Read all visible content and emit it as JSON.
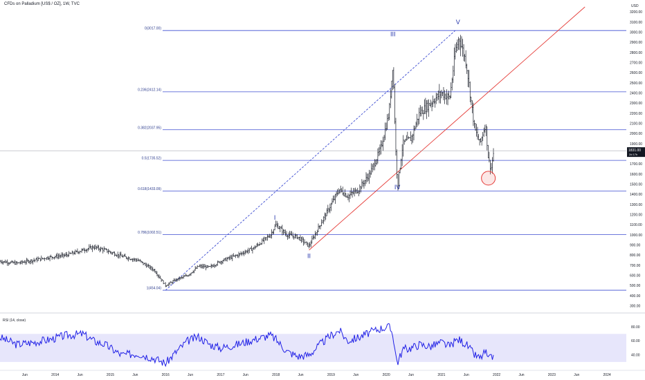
{
  "header": {
    "title": "CFDs on Palladium [US$ / OZ], 1W, TVC"
  },
  "axis": {
    "currency": "USD",
    "price_ticks": [
      300,
      400,
      500,
      600,
      700,
      800,
      900,
      1000,
      1100,
      1200,
      1300,
      1400,
      1500,
      1600,
      1700,
      1800,
      1900,
      2000,
      2100,
      2200,
      2300,
      2400,
      2500,
      2600,
      2700,
      2800,
      2900,
      3000,
      3100,
      3200
    ],
    "price_tick_labels": [
      "300.00",
      "400.00",
      "500.00",
      "600.00",
      "700.00",
      "800.00",
      "900.00",
      "1000.00",
      "1100.00",
      "1200.00",
      "1300.00",
      "1400.00",
      "1500.00",
      "1600.00",
      "1700.00",
      "1800.00",
      "1900.00",
      "2000.00",
      "2100.00",
      "2200.00",
      "2300.00",
      "2400.00",
      "2500.00",
      "2600.00",
      "2700.00",
      "2800.00",
      "2900.00",
      "3000.00",
      "3100.00",
      "3200.00"
    ],
    "time_labels": [
      {
        "t": 2013.45,
        "label": "Jun"
      },
      {
        "t": 2014.0,
        "label": "2014"
      },
      {
        "t": 2014.45,
        "label": "Jun"
      },
      {
        "t": 2015.0,
        "label": "2015"
      },
      {
        "t": 2015.45,
        "label": "Jun"
      },
      {
        "t": 2016.0,
        "label": "2016"
      },
      {
        "t": 2016.45,
        "label": "Jun"
      },
      {
        "t": 2017.0,
        "label": "2017"
      },
      {
        "t": 2017.45,
        "label": "Jun"
      },
      {
        "t": 2018.0,
        "label": "2018"
      },
      {
        "t": 2018.45,
        "label": "Jun"
      },
      {
        "t": 2019.0,
        "label": "2019"
      },
      {
        "t": 2019.45,
        "label": "Jun"
      },
      {
        "t": 2020.0,
        "label": "2020"
      },
      {
        "t": 2020.45,
        "label": "Jun"
      },
      {
        "t": 2021.0,
        "label": "2021"
      },
      {
        "t": 2021.45,
        "label": "Jun"
      },
      {
        "t": 2022.0,
        "label": "2022"
      },
      {
        "t": 2022.45,
        "label": "Jun"
      },
      {
        "t": 2023.0,
        "label": "2023"
      },
      {
        "t": 2023.45,
        "label": "Jun"
      },
      {
        "t": 2024.0,
        "label": "2024"
      }
    ]
  },
  "last_price": {
    "value": 1831.0,
    "label": "1831.00",
    "countdown": "2d 17h"
  },
  "fib_levels": [
    {
      "ratio_label": "0(3017.00)",
      "price": 3017.0
    },
    {
      "ratio_label": "0.236(2412.14)",
      "price": 2412.14
    },
    {
      "ratio_label": "0.382(2037.95)",
      "price": 2037.95
    },
    {
      "ratio_label": "0.5(1735.52)",
      "price": 1735.52
    },
    {
      "ratio_label": "0.618(1433.09)",
      "price": 1433.09
    },
    {
      "ratio_label": "0.786(1002.51)",
      "price": 1002.51
    },
    {
      "ratio_label": "1(454.04)",
      "price": 454.04
    }
  ],
  "wave_labels": [
    {
      "label": "I",
      "t": 2017.98,
      "price": 1150
    },
    {
      "label": "II",
      "t": 2018.6,
      "price": 770
    },
    {
      "label": "III",
      "t": 2020.12,
      "price": 2960
    },
    {
      "label": "IV",
      "t": 2020.2,
      "price": 1450
    },
    {
      "label": "V",
      "t": 2021.3,
      "price": 3080
    }
  ],
  "rsi": {
    "label": "RSI (14, close)",
    "ticks": [
      40,
      60,
      80
    ],
    "tick_labels": [
      "40.00",
      "60.00",
      "80.00"
    ],
    "band": [
      30,
      70
    ]
  },
  "chart_data": {
    "type": "line",
    "title": "CFDs on Palladium [US$ / OZ], 1W, TVC",
    "price_series": {
      "name": "",
      "x": [
        2013.0,
        2013.3,
        2013.6,
        2013.9,
        2014.2,
        2014.5,
        2014.7,
        2014.9,
        2015.2,
        2015.5,
        2015.8,
        2016.0,
        2016.2,
        2016.4,
        2016.6,
        2016.8,
        2017.0,
        2017.3,
        2017.6,
        2017.9,
        2018.0,
        2018.2,
        2018.4,
        2018.6,
        2018.8,
        2019.0,
        2019.15,
        2019.3,
        2019.5,
        2019.7,
        2019.9,
        2020.05,
        2020.12,
        2020.18,
        2020.21,
        2020.3,
        2020.45,
        2020.6,
        2020.8,
        2021.0,
        2021.15,
        2021.25,
        2021.32,
        2021.45,
        2021.6,
        2021.7,
        2021.8,
        2021.85,
        2021.9,
        2021.95
      ],
      "close": [
        740,
        720,
        750,
        780,
        800,
        850,
        880,
        850,
        790,
        750,
        650,
        500,
        560,
        600,
        690,
        680,
        740,
        800,
        870,
        1000,
        1100,
        1000,
        980,
        890,
        1100,
        1300,
        1450,
        1380,
        1450,
        1600,
        1850,
        2200,
        2700,
        1700,
        1500,
        1900,
        1950,
        2200,
        2300,
        2400,
        2350,
        2800,
        2950,
        2700,
        2050,
        1900,
        2100,
        1750,
        1650,
        1831
      ]
    },
    "rsi_series": {
      "name": "",
      "x": [
        2013.0,
        2013.3,
        2013.6,
        2013.9,
        2014.2,
        2014.5,
        2014.7,
        2014.9,
        2015.2,
        2015.5,
        2015.8,
        2016.0,
        2016.2,
        2016.4,
        2016.6,
        2016.8,
        2017.0,
        2017.3,
        2017.6,
        2017.9,
        2018.0,
        2018.2,
        2018.4,
        2018.6,
        2018.8,
        2019.0,
        2019.15,
        2019.3,
        2019.5,
        2019.7,
        2019.9,
        2020.05,
        2020.12,
        2020.18,
        2020.21,
        2020.3,
        2020.45,
        2020.6,
        2020.8,
        2021.0,
        2021.15,
        2021.25,
        2021.32,
        2021.45,
        2021.6,
        2021.7,
        2021.8,
        2021.85,
        2021.9,
        2021.95
      ],
      "values": [
        65,
        55,
        58,
        62,
        68,
        70,
        60,
        55,
        40,
        42,
        35,
        28,
        45,
        60,
        66,
        55,
        50,
        55,
        62,
        68,
        62,
        45,
        38,
        40,
        55,
        68,
        75,
        60,
        65,
        72,
        78,
        80,
        70,
        35,
        30,
        48,
        50,
        55,
        52,
        58,
        52,
        60,
        62,
        55,
        40,
        35,
        45,
        33,
        36,
        38
      ]
    },
    "trend_lines": [
      {
        "style": "dashed",
        "color": "#3b4bd1",
        "from": {
          "t": 2016.0,
          "price": 454
        },
        "to": {
          "t": 2021.25,
          "price": 3017
        }
      },
      {
        "style": "solid",
        "color": "#e53935",
        "from": {
          "t": 2018.6,
          "price": 850
        },
        "to": {
          "t": 2023.6,
          "price": 3250
        }
      }
    ],
    "highlight_circle": {
      "t": 2021.85,
      "price": 1560,
      "color": "#e53935"
    },
    "ylim": [
      250,
      3250
    ],
    "xlim": [
      2013.0,
      2024.35
    ],
    "rsi_ylim": [
      22,
      88
    ]
  },
  "colors": {
    "fib_line": "#3b4bd1",
    "price_bar": "#131722",
    "rsi_line": "#1f1fe6",
    "rsi_band": "#e7e6fb",
    "last_price_bg": "#131722",
    "trend_red": "#e53935"
  }
}
